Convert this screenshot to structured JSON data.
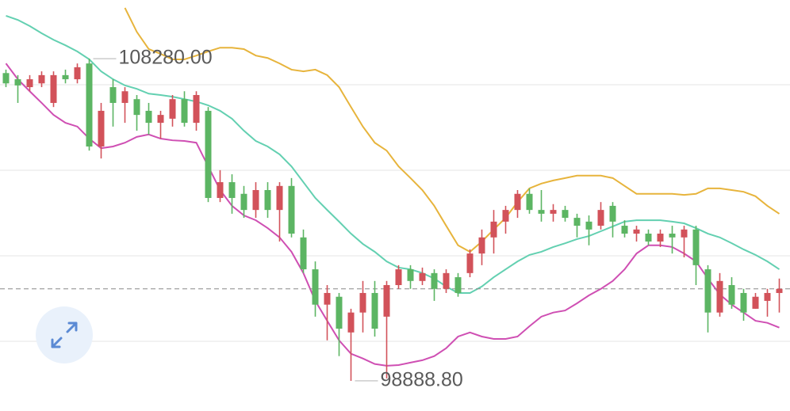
{
  "chart_data": {
    "type": "candlestick",
    "ylim": [
      98010,
      109990
    ],
    "up_color": "#d2525a",
    "down_color": "#5cb563",
    "open": [
      107860,
      107680,
      107450,
      107560,
      106990,
      107800,
      107680,
      108140,
      105720,
      107450,
      106990,
      107100,
      106760,
      106410,
      106530,
      107100,
      106410,
      106760,
      104220,
      104680,
      104340,
      103870,
      104450,
      103870,
      104570,
      103070,
      102140,
      101110,
      101340,
      100300,
      100880,
      101450,
      100760,
      101680,
      102140,
      101800,
      102030,
      101570,
      101910,
      102030,
      102600,
      103070,
      103530,
      103870,
      104340,
      103870,
      103760,
      103870,
      103640,
      103530,
      103410,
      103990,
      103410,
      103180,
      103180,
      102950,
      103180,
      103070,
      103300,
      102140,
      100880,
      101680,
      101450,
      100990,
      101220,
      101450
    ],
    "high": [
      107960,
      107800,
      107800,
      107910,
      107910,
      107960,
      108140,
      108280,
      106990,
      107680,
      107450,
      107220,
      106990,
      106760,
      107220,
      107330,
      107330,
      106870,
      105030,
      104910,
      104570,
      104680,
      104680,
      104680,
      104800,
      103300,
      102370,
      101680,
      101450,
      100990,
      101800,
      101800,
      101800,
      102260,
      102260,
      102190,
      102140,
      102140,
      102030,
      102720,
      103300,
      103870,
      103990,
      104450,
      104500,
      104450,
      104040,
      103990,
      103760,
      103710,
      104100,
      104100,
      103570,
      103410,
      103300,
      103300,
      103410,
      103410,
      103410,
      102260,
      102030,
      101910,
      101570,
      101450,
      101570,
      101870
    ],
    "low": [
      107450,
      106990,
      107330,
      107450,
      106870,
      107560,
      107560,
      105600,
      105370,
      106300,
      106410,
      106180,
      106070,
      105950,
      106300,
      106300,
      106180,
      104100,
      104100,
      103760,
      103640,
      103640,
      103640,
      102950,
      103070,
      102030,
      100760,
      100070,
      99610,
      98888.8,
      100300,
      100180,
      98960,
      101570,
      101570,
      101680,
      101220,
      101450,
      101340,
      101910,
      102260,
      102600,
      103180,
      103640,
      103760,
      103530,
      103530,
      103530,
      103070,
      102840,
      103300,
      103070,
      103070,
      102950,
      102840,
      102790,
      102600,
      102490,
      101680,
      100300,
      100760,
      100990,
      100640,
      100990,
      100760,
      100880
    ],
    "close": [
      107560,
      107500,
      107680,
      107800,
      107800,
      107680,
      108030,
      105720,
      106760,
      106990,
      107330,
      106640,
      106410,
      106640,
      107100,
      106410,
      107220,
      104220,
      104680,
      104220,
      103870,
      104450,
      103870,
      104570,
      103180,
      102140,
      101110,
      101450,
      100410,
      100880,
      101450,
      100410,
      101680,
      102140,
      101800,
      102030,
      101570,
      102030,
      101450,
      102600,
      103070,
      103530,
      103870,
      104340,
      103870,
      103760,
      103870,
      103640,
      103410,
      103300,
      103870,
      103530,
      103180,
      103300,
      102950,
      103180,
      103070,
      103300,
      102260,
      100880,
      101800,
      101110,
      100880,
      101340,
      101450,
      101570
    ],
    "series": [
      {
        "color": "#e7b43c",
        "values": [
          null,
          null,
          null,
          null,
          null,
          null,
          null,
          null,
          null,
          null,
          109760,
          109060,
          108560,
          108420,
          108260,
          108260,
          108370,
          108490,
          108600,
          108600,
          108560,
          108370,
          108300,
          108140,
          107960,
          107910,
          107960,
          107800,
          107450,
          106870,
          106300,
          105830,
          105600,
          105140,
          104800,
          104450,
          103990,
          103410,
          102840,
          102650,
          102950,
          103300,
          103640,
          104100,
          104500,
          104640,
          104730,
          104800,
          104870,
          104870,
          104870,
          104800,
          104570,
          104340,
          104340,
          104340,
          104340,
          104310,
          104340,
          104500,
          104500,
          104450,
          104400,
          104270,
          103990,
          103760
        ]
      },
      {
        "color": "#63d0b1",
        "values": [
          109530,
          109410,
          109230,
          109020,
          108830,
          108670,
          108490,
          108260,
          107910,
          107680,
          107500,
          107400,
          107260,
          107220,
          107170,
          107100,
          107030,
          106920,
          106760,
          106530,
          106180,
          105880,
          105720,
          105490,
          105140,
          104680,
          104220,
          103870,
          103530,
          103180,
          102880,
          102650,
          102370,
          102190,
          102140,
          102030,
          101870,
          101640,
          101450,
          101450,
          101640,
          101910,
          102140,
          102370,
          102560,
          102650,
          102790,
          102900,
          103020,
          103110,
          103250,
          103390,
          103530,
          103570,
          103570,
          103570,
          103530,
          103480,
          103340,
          103180,
          103070,
          102900,
          102720,
          102560,
          102370,
          102140
        ]
      },
      {
        "color": "#cf4fb3",
        "values": [
          108140,
          107680,
          107330,
          106990,
          106640,
          106410,
          106300,
          105950,
          105670,
          105720,
          105830,
          106000,
          106070,
          105950,
          105900,
          105880,
          105830,
          105140,
          104450,
          103990,
          103710,
          103570,
          103340,
          103070,
          102650,
          102030,
          101220,
          100640,
          100070,
          99680,
          99540,
          99380,
          99330,
          99350,
          99420,
          99490,
          99610,
          99840,
          100180,
          100300,
          100180,
          100110,
          100110,
          100180,
          100480,
          100760,
          100880,
          100940,
          101150,
          101380,
          101570,
          101800,
          102140,
          102600,
          102840,
          102840,
          102790,
          102600,
          102370,
          101870,
          101410,
          101110,
          100880,
          100640,
          100580,
          100440
        ]
      }
    ],
    "annotations": [
      {
        "value": 108280,
        "label": "108280.00",
        "of": "high"
      },
      {
        "value": 98888.8,
        "label": "98888.80",
        "of": "low"
      }
    ]
  }
}
